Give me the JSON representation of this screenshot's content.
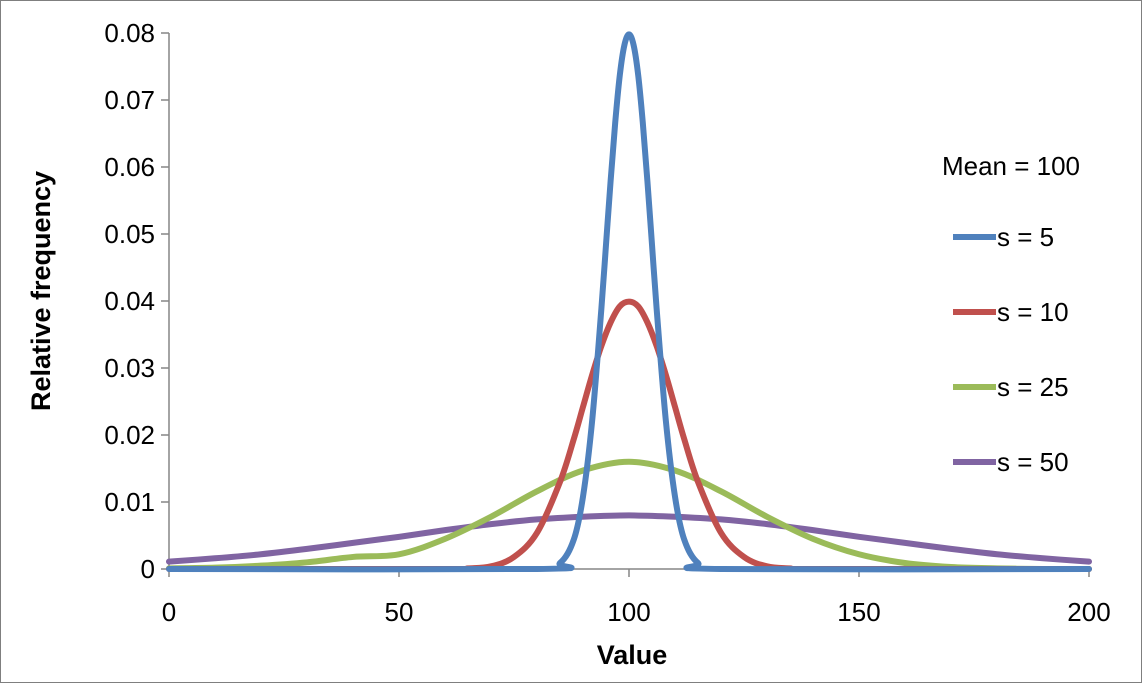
{
  "chart_data": {
    "type": "line",
    "title": "",
    "xlabel": "Value",
    "ylabel": "Relative frequency",
    "xlim": [
      0,
      200
    ],
    "ylim": [
      0,
      0.08
    ],
    "xticks": [
      "0",
      "50",
      "100",
      "150",
      "200"
    ],
    "yticks": [
      "0",
      "0.01",
      "0.02",
      "0.03",
      "0.04",
      "0.05",
      "0.06",
      "0.07",
      "0.08"
    ],
    "grid": false,
    "legend": {
      "position": "right",
      "title": "Mean = 100"
    },
    "series": [
      {
        "name": "s = 5",
        "color": "#4f81bd",
        "x": [
          80,
          85,
          88,
          90,
          92,
          94,
          95,
          96,
          97,
          98,
          99,
          100,
          101,
          102,
          103,
          104,
          105,
          106,
          108,
          110,
          112,
          115,
          120
        ],
        "y": [
          0.0,
          0.0009,
          0.0044,
          0.0108,
          0.0222,
          0.0389,
          0.0484,
          0.0579,
          0.0666,
          0.0737,
          0.0782,
          0.0798,
          0.0782,
          0.0737,
          0.0666,
          0.0579,
          0.0484,
          0.0389,
          0.0222,
          0.0108,
          0.0044,
          0.0009,
          0.0
        ]
      },
      {
        "name": "s = 10",
        "color": "#c0504d",
        "x": [
          60,
          65,
          70,
          75,
          80,
          85,
          88,
          90,
          92,
          94,
          96,
          98,
          100,
          102,
          104,
          106,
          108,
          110,
          112,
          115,
          120,
          125,
          130,
          135,
          140
        ],
        "y": [
          0.0,
          0.0001,
          0.0004,
          0.0018,
          0.0054,
          0.013,
          0.0194,
          0.0242,
          0.029,
          0.0333,
          0.0368,
          0.0392,
          0.0399,
          0.0392,
          0.0368,
          0.0333,
          0.029,
          0.0242,
          0.0194,
          0.013,
          0.0054,
          0.0018,
          0.0004,
          0.0001,
          0.0
        ]
      },
      {
        "name": "s = 25",
        "color": "#9bbb59",
        "x": [
          0,
          10,
          20,
          30,
          40,
          50,
          60,
          70,
          80,
          90,
          100,
          110,
          120,
          130,
          140,
          150,
          160,
          170,
          180,
          190,
          200
        ],
        "y": [
          0.0001,
          0.0002,
          0.0005,
          0.001,
          0.0018,
          0.0022,
          0.0045,
          0.0078,
          0.0116,
          0.0147,
          0.016,
          0.0147,
          0.0116,
          0.0078,
          0.0045,
          0.0022,
          0.0009,
          0.0003,
          0.0001,
          0.0,
          0.0
        ]
      },
      {
        "name": "s = 50",
        "color": "#8064a2",
        "x": [
          0,
          10,
          20,
          30,
          40,
          50,
          60,
          70,
          80,
          90,
          100,
          110,
          120,
          130,
          140,
          150,
          160,
          170,
          180,
          190,
          200
        ],
        "y": [
          0.0011,
          0.0016,
          0.0022,
          0.003,
          0.0039,
          0.0048,
          0.0058,
          0.0067,
          0.0074,
          0.0078,
          0.008,
          0.0078,
          0.0074,
          0.0067,
          0.0058,
          0.0048,
          0.0039,
          0.003,
          0.0022,
          0.0016,
          0.0011
        ]
      }
    ]
  }
}
